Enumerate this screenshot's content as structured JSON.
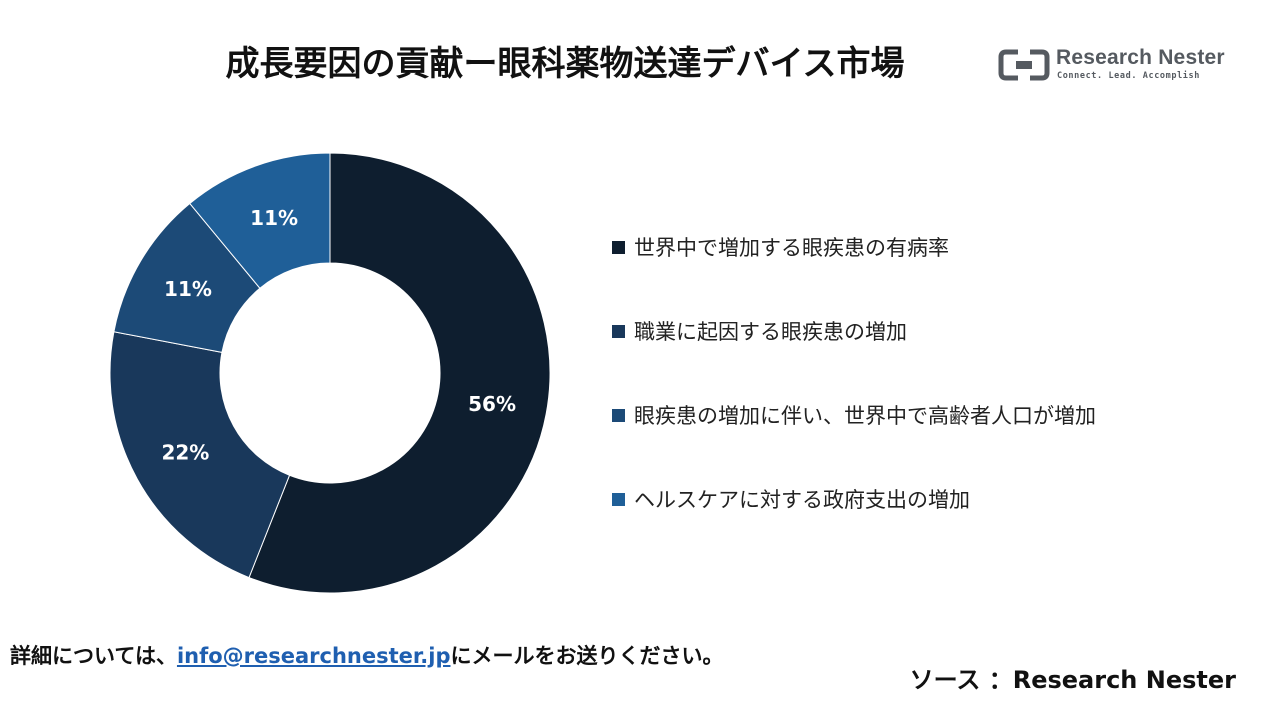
{
  "title": "成長要因の貢献ー眼科薬物送達デバイス市場",
  "logo": {
    "name": "Research Nester",
    "tagline": "Connect. Lead. Accomplish",
    "color": "#555a60"
  },
  "chart_data": {
    "type": "pie",
    "variant": "donut",
    "categories": [
      "世界中で増加する眼疾患の有病率",
      "職業に起因する眼疾患の増加",
      "眼疾患の増加に伴い、世界中で高齢者人口が増加",
      "ヘルスケアに対する政府支出の増加"
    ],
    "values": [
      56,
      22,
      11,
      11
    ],
    "labels": [
      "56%",
      "22%",
      "11%",
      "11%"
    ],
    "colors": [
      "#0e1e2f",
      "#19385b",
      "#1c4a77",
      "#1f5f98"
    ],
    "legend_position": "right"
  },
  "footer": {
    "prefix": "詳細については、",
    "email": "info@researchnester.jp",
    "suffix": "にメールをお送りください。"
  },
  "source": "ソース ：Research Nester"
}
